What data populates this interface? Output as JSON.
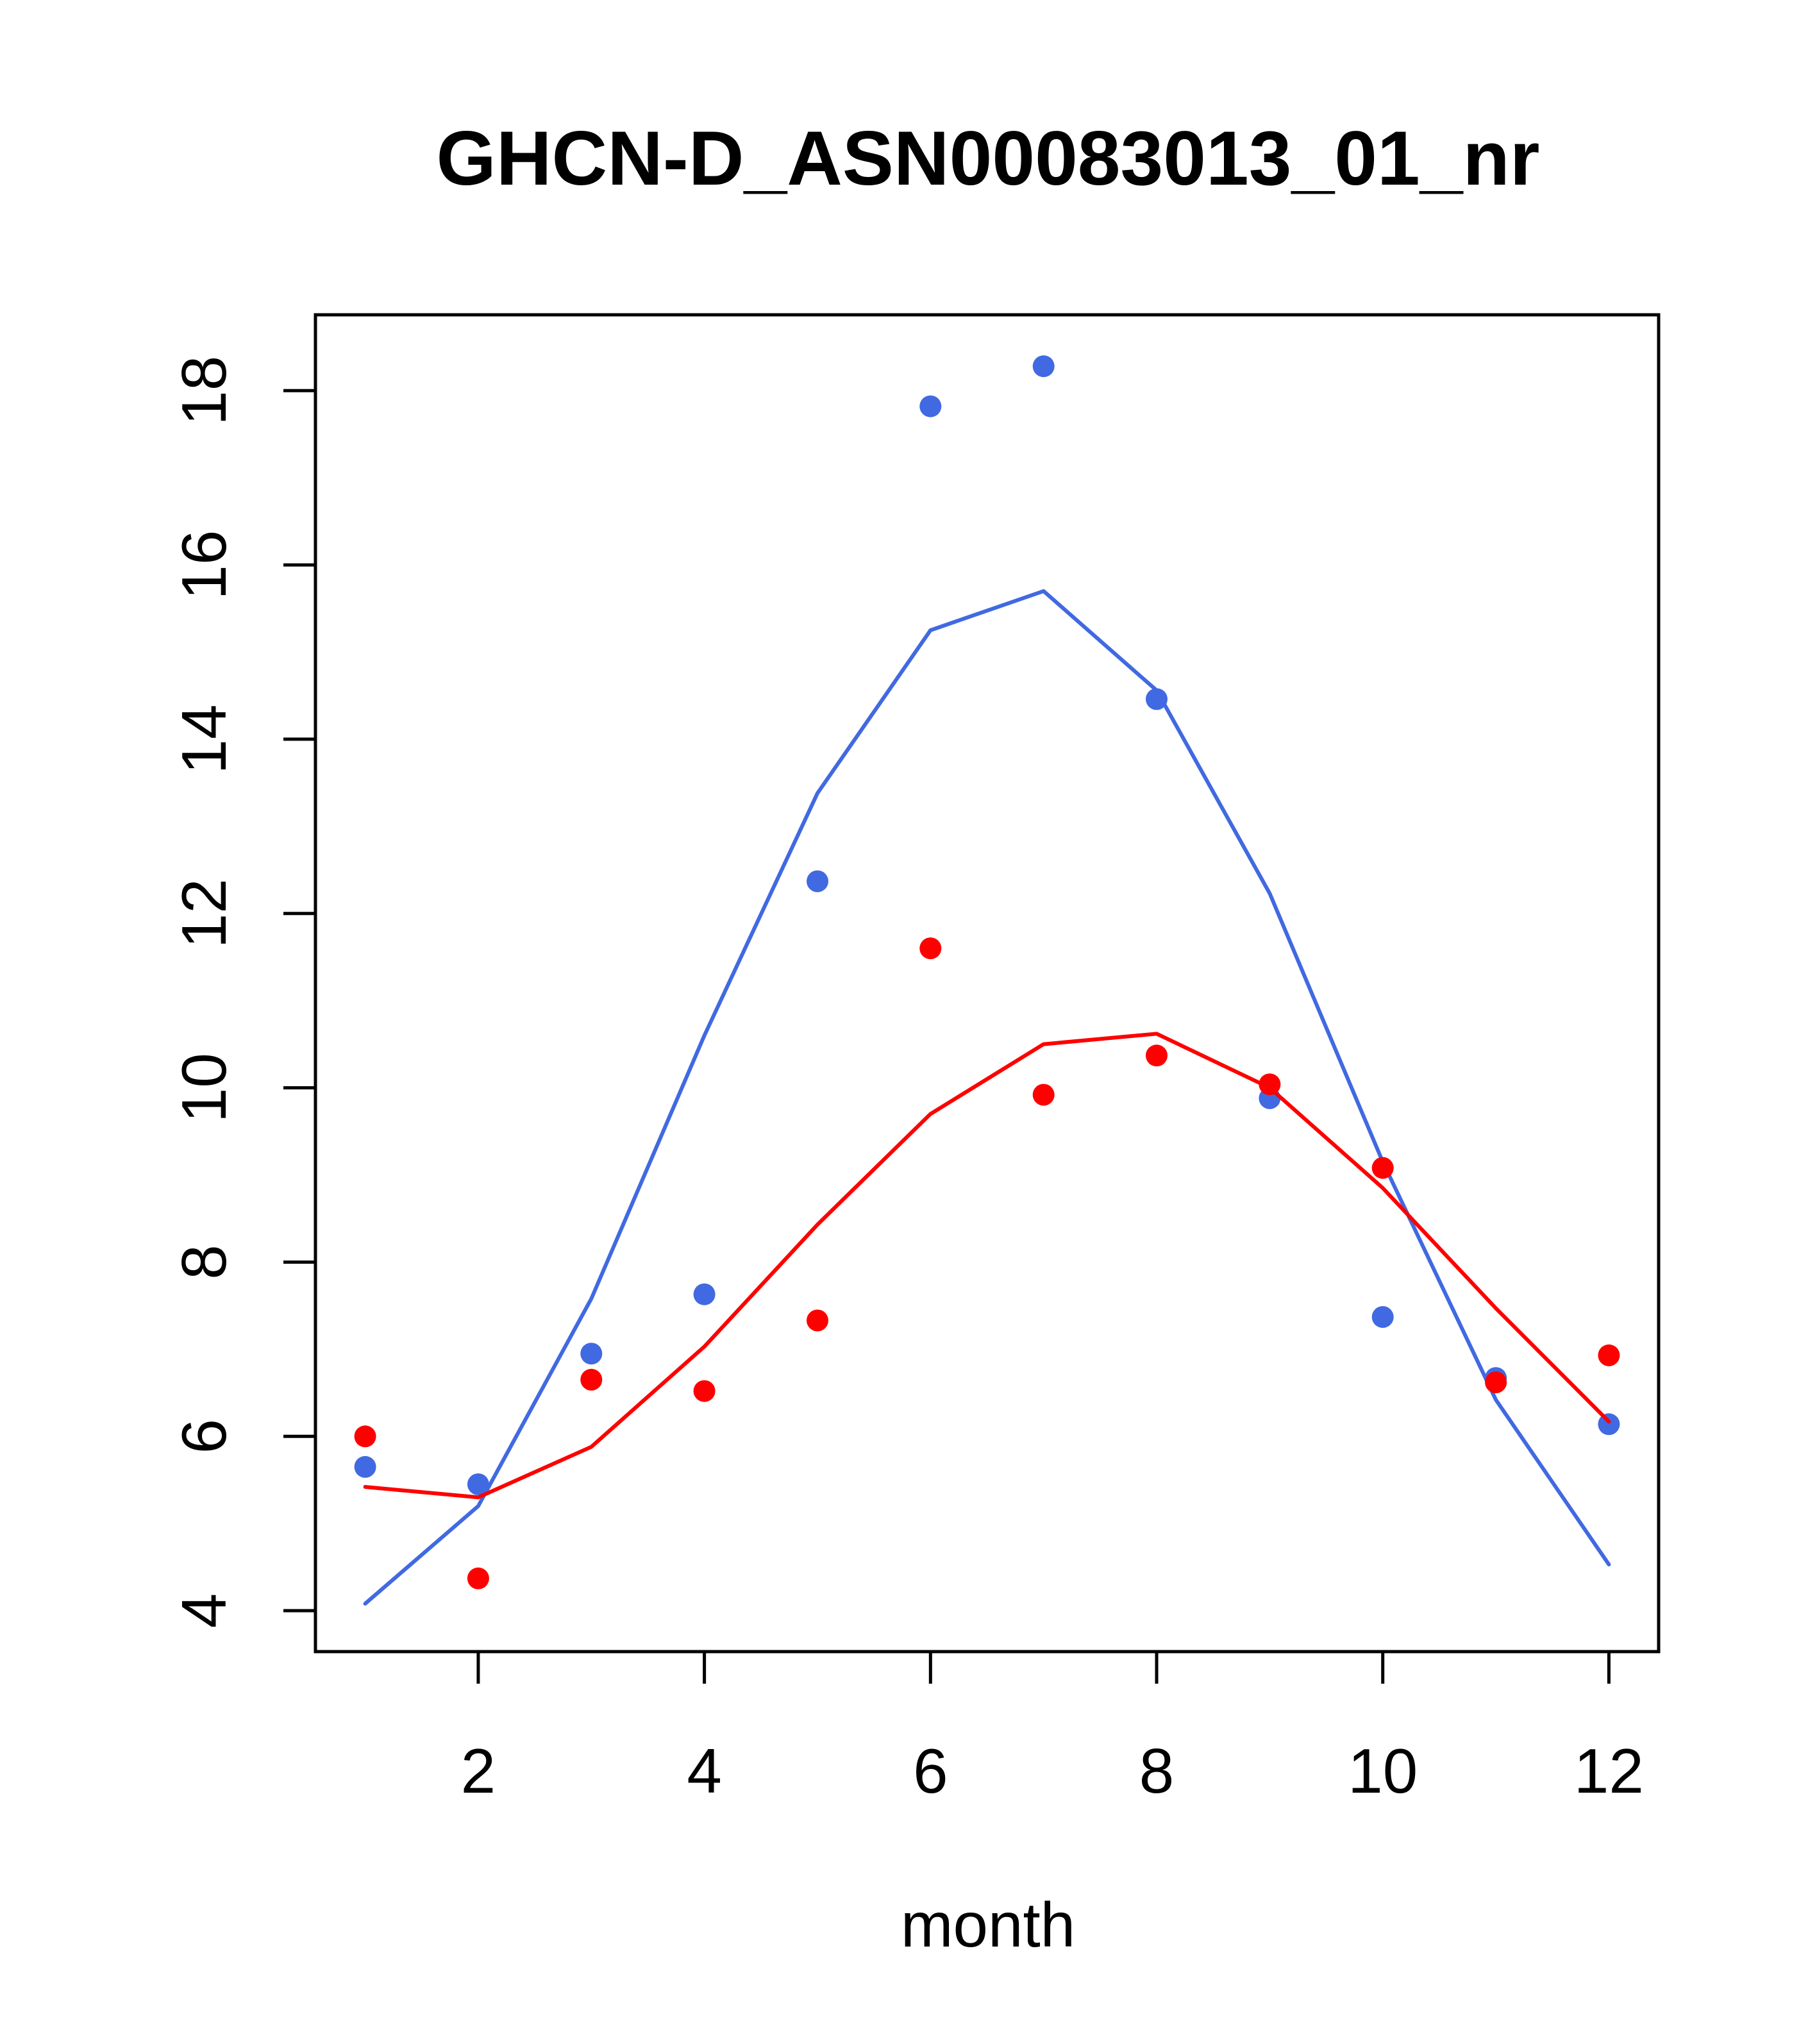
{
  "chart_data": {
    "type": "scatter",
    "title": "GHCN-D_ASN00083013_01_nr",
    "xlabel": "month",
    "ylabel": "",
    "xlim": [
      0.56,
      12.44
    ],
    "ylim": [
      3.53,
      18.87
    ],
    "xticks": [
      2,
      4,
      6,
      8,
      10,
      12
    ],
    "yticks": [
      4,
      6,
      8,
      10,
      12,
      14,
      16,
      18
    ],
    "grid": false,
    "legend": null,
    "x": [
      1,
      2,
      3,
      4,
      5,
      6,
      7,
      8,
      9,
      10,
      11,
      12
    ],
    "series": [
      {
        "color": "#4169e1",
        "points": [
          5.65,
          5.45,
          6.95,
          7.63,
          12.37,
          17.82,
          18.28,
          14.46,
          9.88,
          7.37,
          6.67,
          6.14
        ],
        "line": [
          4.08,
          5.2,
          7.58,
          10.6,
          13.38,
          15.25,
          15.7,
          14.56,
          12.23,
          9.15,
          6.42,
          4.53
        ]
      },
      {
        "color": "#ff0000",
        "points": [
          6.0,
          4.37,
          6.65,
          6.52,
          7.33,
          11.6,
          9.92,
          10.37,
          10.04,
          9.08,
          6.62,
          6.93
        ],
        "line": [
          5.42,
          5.3,
          5.88,
          7.03,
          8.43,
          9.7,
          10.5,
          10.62,
          10.0,
          8.85,
          7.47,
          6.17
        ]
      }
    ]
  }
}
